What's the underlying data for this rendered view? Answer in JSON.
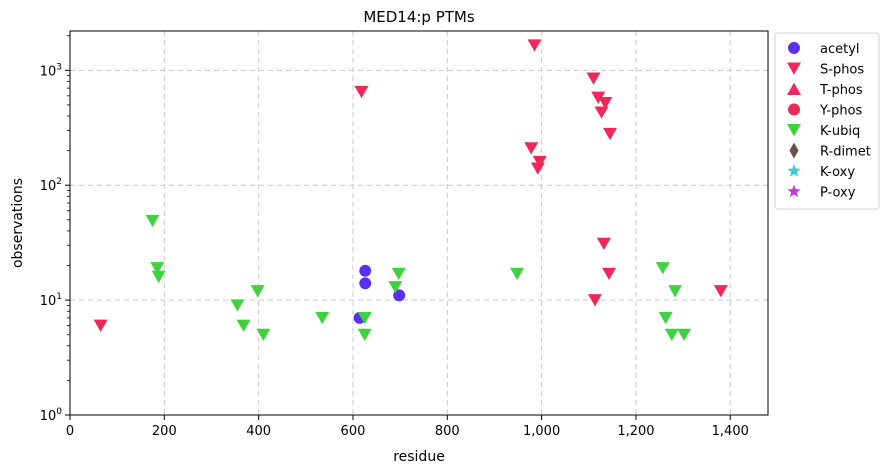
{
  "chart_data": {
    "type": "scatter",
    "title": "MED14:p PTMs",
    "xlabel": "residue",
    "ylabel": "observations",
    "xlim": [
      0,
      1480
    ],
    "ylim": [
      1,
      2200
    ],
    "yscale": "log",
    "grid": true,
    "legend_position": "outside-right",
    "x_ticks": [
      {
        "value": 0,
        "label": "0"
      },
      {
        "value": 200,
        "label": "200"
      },
      {
        "value": 400,
        "label": "400"
      },
      {
        "value": 600,
        "label": "600"
      },
      {
        "value": 800,
        "label": "800"
      },
      {
        "value": 1000,
        "label": "1,000"
      },
      {
        "value": 1200,
        "label": "1,200"
      },
      {
        "value": 1400,
        "label": "1,400"
      }
    ],
    "y_ticks": [
      {
        "value": 1,
        "base": "10",
        "exp": "0"
      },
      {
        "value": 10,
        "base": "10",
        "exp": "1"
      },
      {
        "value": 100,
        "base": "10",
        "exp": "2"
      },
      {
        "value": 1000,
        "base": "10",
        "exp": "3"
      }
    ],
    "series": [
      {
        "name": "acetyl",
        "marker": "circle",
        "color": "#5b2ff0",
        "points": [
          [
            614,
            7
          ],
          [
            626,
            18
          ],
          [
            626,
            14
          ],
          [
            698,
            11
          ]
        ]
      },
      {
        "name": "S-phos",
        "marker": "triangle-down",
        "color": "#f0285a",
        "points": [
          [
            65,
            6
          ],
          [
            618,
            650
          ],
          [
            985,
            1650
          ],
          [
            1110,
            850
          ],
          [
            1120,
            580
          ],
          [
            1135,
            520
          ],
          [
            1127,
            430
          ],
          [
            1145,
            280
          ],
          [
            978,
            210
          ],
          [
            996,
            160
          ],
          [
            992,
            140
          ],
          [
            1132,
            31
          ],
          [
            1143,
            17
          ],
          [
            1113,
            10
          ],
          [
            1380,
            12
          ]
        ]
      },
      {
        "name": "T-phos",
        "marker": "triangle-up",
        "color": "#f0285a",
        "points": []
      },
      {
        "name": "Y-phos",
        "marker": "circle",
        "color": "#f0285a",
        "points": []
      },
      {
        "name": "K-ubiq",
        "marker": "triangle-down",
        "color": "#3ed33e",
        "points": [
          [
            175,
            49
          ],
          [
            185,
            19
          ],
          [
            188,
            16
          ],
          [
            355,
            9
          ],
          [
            368,
            6
          ],
          [
            398,
            12
          ],
          [
            410,
            5
          ],
          [
            535,
            7
          ],
          [
            625,
            7
          ],
          [
            625,
            5
          ],
          [
            690,
            13
          ],
          [
            697,
            17
          ],
          [
            948,
            17
          ],
          [
            1257,
            19
          ],
          [
            1263,
            7
          ],
          [
            1283,
            12
          ],
          [
            1276,
            5
          ],
          [
            1302,
            5
          ]
        ]
      },
      {
        "name": "R-dimet",
        "marker": "diamond",
        "color": "#6b5047",
        "points": []
      },
      {
        "name": "K-oxy",
        "marker": "star",
        "color": "#3fc9d6",
        "points": []
      },
      {
        "name": "P-oxy",
        "marker": "star",
        "color": "#c13fd6",
        "points": []
      }
    ]
  }
}
